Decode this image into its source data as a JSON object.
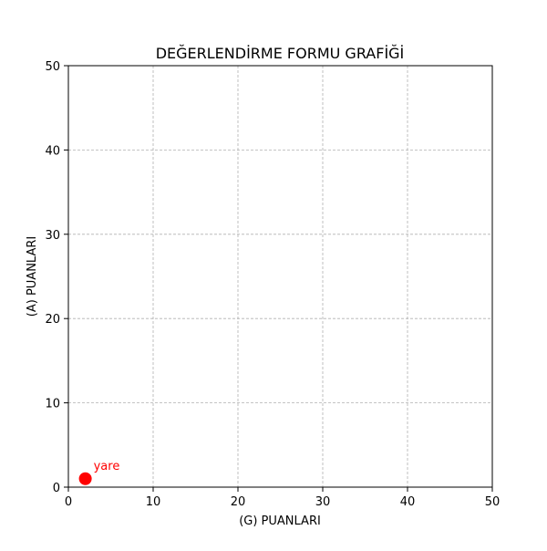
{
  "chart_data": {
    "type": "scatter",
    "title": "DEĞERLENDİRME FORMU GRAFİĞİ",
    "xlabel": "(G) PUANLARI",
    "ylabel": "(A) PUANLARI",
    "xlim": [
      0,
      50
    ],
    "ylim": [
      0,
      50
    ],
    "xticks": [
      "0",
      "10",
      "20",
      "30",
      "40",
      "50"
    ],
    "yticks": [
      "0",
      "10",
      "20",
      "30",
      "40",
      "50"
    ],
    "grid": true,
    "points": [
      {
        "label": "yare",
        "x": 2,
        "y": 1,
        "color": "#ff0000"
      }
    ]
  }
}
